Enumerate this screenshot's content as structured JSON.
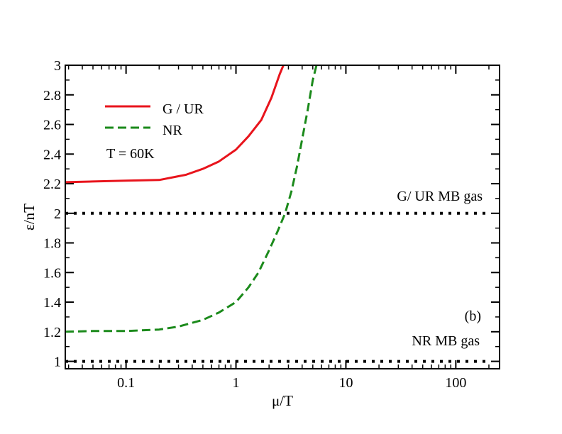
{
  "chart_data": {
    "type": "line",
    "title": "",
    "xlabel": "μ/T",
    "ylabel": "ε/nT",
    "xscale": "log",
    "xlim": [
      0.028,
      250
    ],
    "ylim": [
      0.95,
      3
    ],
    "x_ticks": [
      {
        "value": 0.1,
        "label": "0.1"
      },
      {
        "value": 1,
        "label": "1"
      },
      {
        "value": 10,
        "label": "10"
      },
      {
        "value": 100,
        "label": "100"
      }
    ],
    "y_ticks": [
      {
        "value": 1,
        "label": "1"
      },
      {
        "value": 1.2,
        "label": "1.2"
      },
      {
        "value": 1.4,
        "label": "1.4"
      },
      {
        "value": 1.6,
        "label": "1.6"
      },
      {
        "value": 1.8,
        "label": "1.8"
      },
      {
        "value": 2,
        "label": "2"
      },
      {
        "value": 2.2,
        "label": "2.2"
      },
      {
        "value": 2.4,
        "label": "2.4"
      },
      {
        "value": 2.6,
        "label": "2.6"
      },
      {
        "value": 2.8,
        "label": "2.8"
      },
      {
        "value": 3,
        "label": "3"
      }
    ],
    "series": [
      {
        "name": "G / UR",
        "color": "#e8141c",
        "style": "solid",
        "x": [
          0.028,
          0.05,
          0.1,
          0.2,
          0.35,
          0.5,
          0.7,
          1.0,
          1.3,
          1.7,
          2.1,
          2.5,
          2.7
        ],
        "y": [
          2.21,
          2.215,
          2.22,
          2.225,
          2.26,
          2.3,
          2.35,
          2.43,
          2.52,
          2.63,
          2.78,
          2.94,
          3.0
        ]
      },
      {
        "name": "NR",
        "color": "#1b8a1b",
        "style": "dashed",
        "x": [
          0.028,
          0.05,
          0.1,
          0.2,
          0.3,
          0.5,
          0.7,
          1.0,
          1.3,
          1.6,
          2.0,
          2.4,
          2.8,
          3.2,
          3.6,
          4.0,
          4.5,
          5.0,
          5.4
        ],
        "y": [
          1.2,
          1.205,
          1.205,
          1.215,
          1.235,
          1.28,
          1.33,
          1.4,
          1.5,
          1.6,
          1.75,
          1.88,
          2.0,
          2.15,
          2.32,
          2.5,
          2.7,
          2.9,
          3.0
        ]
      },
      {
        "name": "G/ UR MB gas",
        "color": "#000000",
        "style": "dotted",
        "x": [
          0.028,
          190
        ],
        "y": [
          2,
          2
        ]
      },
      {
        "name": "NR MB gas",
        "color": "#000000",
        "style": "dotted",
        "x": [
          0.028,
          190
        ],
        "y": [
          1,
          1
        ]
      }
    ],
    "legend": {
      "position": "top-left",
      "entries": [
        "G / UR",
        "NR"
      ]
    },
    "annotations": [
      {
        "text": "T = 60K"
      },
      {
        "text": "G/ UR MB gas"
      },
      {
        "text": "NR MB gas"
      },
      {
        "text": "(b)"
      }
    ]
  }
}
